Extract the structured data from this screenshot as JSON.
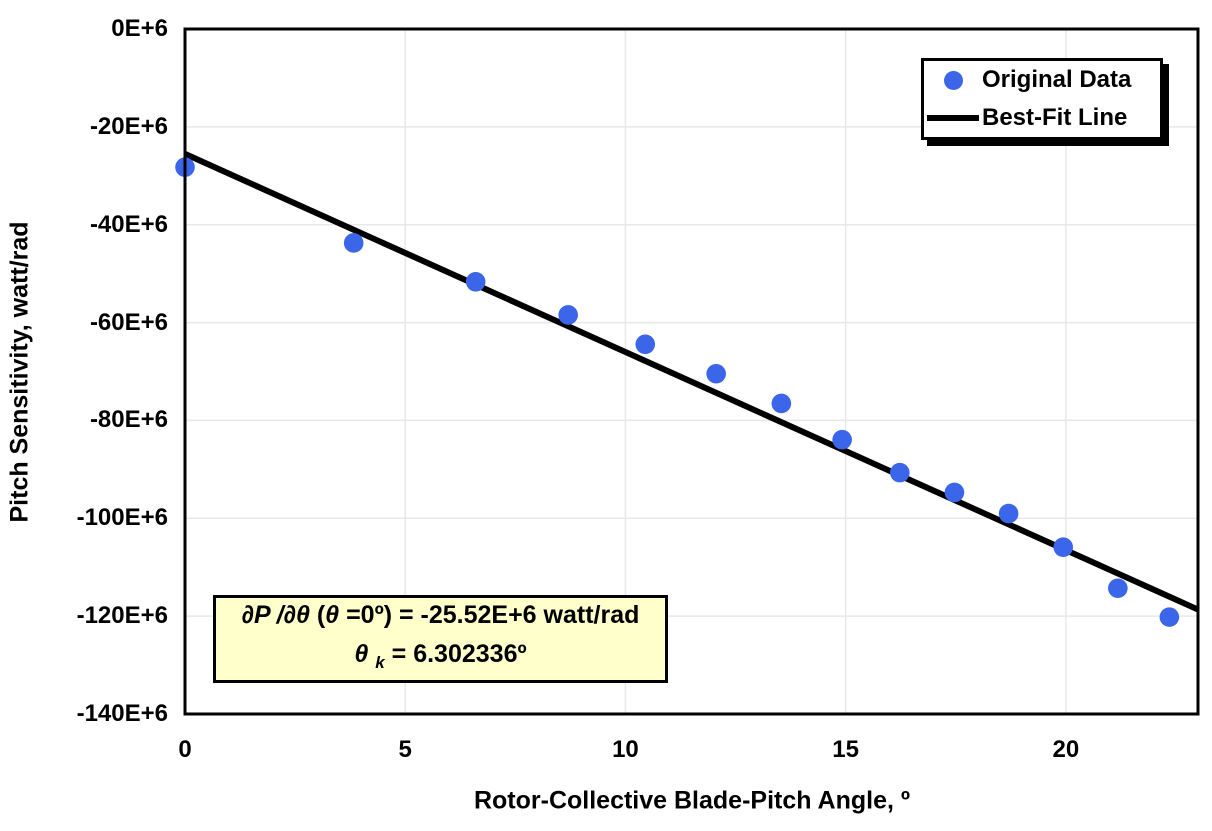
{
  "chart_data": {
    "type": "scatter",
    "title": "",
    "xlabel": "Rotor-Collective Blade-Pitch Angle, º",
    "ylabel": "Pitch Sensitivity, watt/rad",
    "xlim": [
      0,
      23
    ],
    "ylim_e6": [
      -140,
      0
    ],
    "grid": true,
    "x_ticks": [
      {
        "v": 0,
        "label": "0"
      },
      {
        "v": 5,
        "label": "5"
      },
      {
        "v": 10,
        "label": "10"
      },
      {
        "v": 15,
        "label": "15"
      },
      {
        "v": 20,
        "label": "20"
      }
    ],
    "y_ticks": [
      {
        "v": 0,
        "label": "0E+6"
      },
      {
        "v": -20,
        "label": "-20E+6"
      },
      {
        "v": -40,
        "label": "-40E+6"
      },
      {
        "v": -60,
        "label": "-60E+6"
      },
      {
        "v": -80,
        "label": "-80E+6"
      },
      {
        "v": -100,
        "label": "-100E+6"
      },
      {
        "v": -120,
        "label": "-120E+6"
      },
      {
        "v": -140,
        "label": "-140E+6"
      }
    ],
    "series": [
      {
        "name": "Original Data",
        "type": "scatter",
        "units": "x: degrees, y: E+6 watt/rad",
        "points_e6": [
          [
            0.0,
            -28.24
          ],
          [
            3.83,
            -43.73
          ],
          [
            6.6,
            -51.66
          ],
          [
            8.7,
            -58.44
          ],
          [
            10.45,
            -64.44
          ],
          [
            12.06,
            -70.46
          ],
          [
            13.54,
            -76.53
          ],
          [
            14.92,
            -83.94
          ],
          [
            16.23,
            -90.67
          ],
          [
            17.47,
            -94.71
          ],
          [
            18.7,
            -99.04
          ],
          [
            19.94,
            -105.9
          ],
          [
            21.18,
            -114.3
          ],
          [
            22.35,
            -120.2
          ]
        ]
      },
      {
        "name": "Best-Fit Line",
        "type": "line",
        "fit": {
          "intercept_e6": -25.52,
          "theta_k_deg": 6.302336
        }
      }
    ],
    "legend_position": "top-right"
  },
  "legend": {
    "items": [
      {
        "label": "Original Data",
        "marker": "dot"
      },
      {
        "label": "Best-Fit Line",
        "marker": "line"
      }
    ]
  },
  "annotation": {
    "dpdtheta": "∂P /∂θ ",
    "paren_open": "(",
    "theta": "θ",
    "rest1": " =0º) = -25.52E+6 watt/rad",
    "theta2": "θ ",
    "sub_k": "k",
    "rest2": " = 6.302336º"
  },
  "colors": {
    "dot": "#3B66EA",
    "line": "#000000",
    "grid": "#E8E8E8",
    "frame": "#000000",
    "annotation_bg": "#FFFFCC",
    "background": "#FFFFFF"
  }
}
